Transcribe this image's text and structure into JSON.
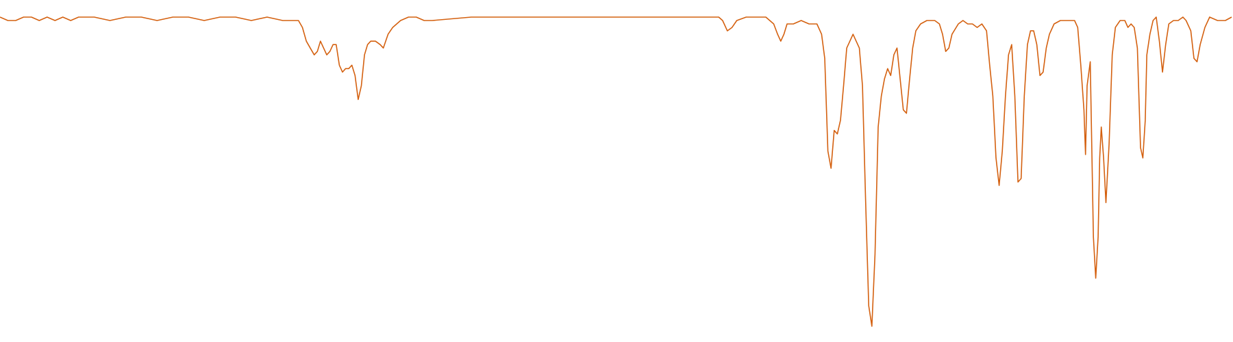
{
  "chart_data": {
    "type": "line",
    "color": "#d4600f",
    "x": [
      0,
      10,
      20,
      30,
      40,
      50,
      60,
      70,
      80,
      90,
      100,
      120,
      140,
      160,
      180,
      200,
      220,
      240,
      260,
      280,
      300,
      320,
      340,
      360,
      375,
      380,
      385,
      390,
      395,
      400,
      404,
      408,
      412,
      416,
      420,
      424,
      428,
      432,
      436,
      440,
      444,
      448,
      452,
      456,
      460,
      464,
      468,
      472,
      478,
      484,
      488,
      494,
      500,
      510,
      520,
      530,
      540,
      550,
      600,
      650,
      700,
      750,
      800,
      850,
      900,
      915,
      920,
      926,
      932,
      938,
      950,
      975,
      985,
      990,
      994,
      998,
      1002,
      1010,
      1020,
      1030,
      1040,
      1046,
      1050,
      1054,
      1058,
      1062,
      1066,
      1070,
      1074,
      1078,
      1082,
      1086,
      1090,
      1094,
      1098,
      1102,
      1106,
      1110,
      1114,
      1118,
      1122,
      1126,
      1130,
      1134,
      1138,
      1142,
      1146,
      1150,
      1154,
      1158,
      1162,
      1166,
      1172,
      1180,
      1190,
      1196,
      1200,
      1204,
      1208,
      1212,
      1220,
      1226,
      1232,
      1238,
      1244,
      1250,
      1256,
      1260,
      1264,
      1268,
      1272,
      1276,
      1280,
      1284,
      1288,
      1292,
      1296,
      1300,
      1304,
      1308,
      1312,
      1316,
      1320,
      1324,
      1328,
      1332,
      1336,
      1342,
      1350,
      1360,
      1368,
      1372,
      1376,
      1380,
      1382,
      1384,
      1388,
      1392,
      1395,
      1398,
      1400,
      1402,
      1405,
      1408,
      1412,
      1416,
      1420,
      1426,
      1432,
      1436,
      1440,
      1444,
      1448,
      1452,
      1455,
      1458,
      1460,
      1464,
      1468,
      1472,
      1476,
      1480,
      1484,
      1488,
      1494,
      1500,
      1506,
      1510,
      1516,
      1520,
      1524,
      1528,
      1534,
      1540,
      1550,
      1560,
      1568
    ],
    "values": [
      95,
      94,
      94,
      95,
      95,
      94,
      95,
      94,
      95,
      94,
      95,
      95,
      94,
      95,
      95,
      94,
      95,
      95,
      94,
      95,
      95,
      94,
      95,
      94,
      94,
      94,
      92,
      88,
      86,
      84,
      85,
      88,
      86,
      84,
      85,
      87,
      87,
      81,
      79,
      80,
      80,
      81,
      78,
      71,
      75,
      84,
      87,
      88,
      88,
      87,
      86,
      90,
      92,
      94,
      95,
      95,
      94,
      94,
      95,
      95,
      95,
      95,
      95,
      95,
      95,
      95,
      94,
      91,
      92,
      94,
      95,
      95,
      93,
      90,
      88,
      90,
      93,
      93,
      94,
      93,
      93,
      90,
      83,
      56,
      51,
      62,
      61,
      65,
      75,
      86,
      88,
      90,
      88,
      86,
      75,
      42,
      11,
      5,
      26,
      63,
      72,
      77,
      80,
      78,
      84,
      86,
      77,
      68,
      67,
      77,
      86,
      91,
      93,
      94,
      94,
      93,
      90,
      85,
      86,
      90,
      93,
      94,
      93,
      93,
      92,
      93,
      91,
      81,
      72,
      54,
      46,
      56,
      72,
      84,
      87,
      72,
      47,
      48,
      72,
      87,
      91,
      91,
      87,
      78,
      79,
      86,
      90,
      93,
      94,
      94,
      94,
      92,
      81,
      68,
      55,
      75,
      82,
      31,
      19,
      31,
      54,
      63,
      54,
      41,
      58,
      84,
      92,
      94,
      94,
      92,
      93,
      92,
      86,
      57,
      54,
      65,
      84,
      90,
      94,
      95,
      88,
      79,
      87,
      93,
      94,
      94,
      95,
      94,
      91,
      83,
      82,
      87,
      92,
      95,
      94,
      94,
      95
    ]
  }
}
